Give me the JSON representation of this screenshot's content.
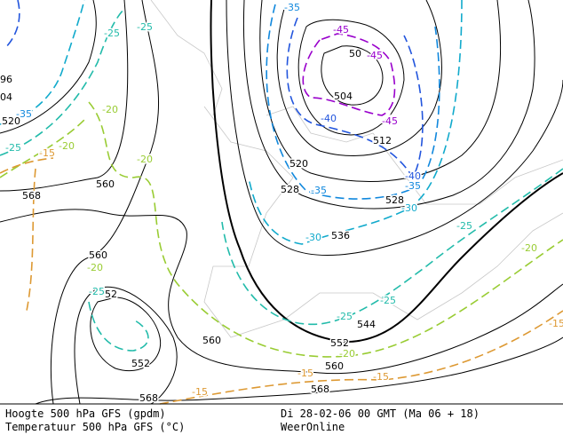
{
  "footer": {
    "height": "Hoogte 500 hPa GFS (gpdm)",
    "temperature": "Temperatuur 500 hPa GFS (°C)",
    "time": "Di 28-02-06 00 GMT (Ma 06 + 18)",
    "source": "WeerOnline"
  },
  "contour_labels": [
    "96",
    "04",
    "520",
    "568",
    "560",
    "560",
    "52",
    "552",
    "560",
    "552",
    "560",
    "568",
    "568",
    "50",
    "504",
    "512",
    "520",
    "528",
    "528",
    "536",
    "544",
    "-45",
    "-45",
    "-45",
    "-40",
    "-40",
    "-35",
    "-35",
    "-35",
    "-35",
    "-30",
    "-30",
    "-25",
    "-25",
    "-25",
    "-25",
    "-25",
    "-25",
    "-25",
    "-20",
    "-20",
    "-20",
    "-20",
    "-20",
    "-20",
    "-15",
    "-15",
    "-15",
    "-15",
    "-15"
  ]
}
